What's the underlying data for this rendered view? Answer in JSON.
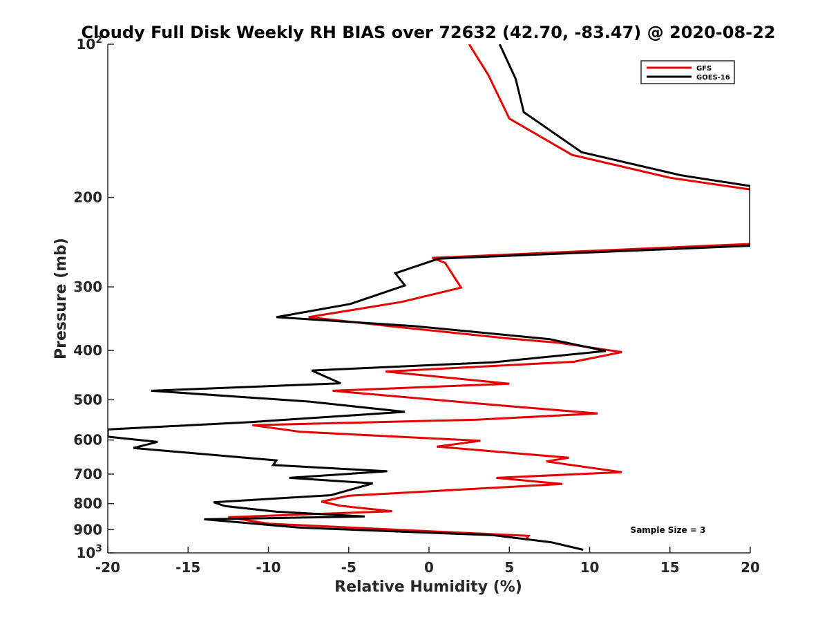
{
  "chart_data": {
    "type": "line",
    "title": "Cloudy Full Disk Weekly RH BIAS over 72632 (42.70, -83.47) @ 2020-08-22",
    "xlabel": "Relative Humidity (%)",
    "ylabel": "Pressure (mb)",
    "xlim": [
      -20,
      20
    ],
    "ylim": [
      100,
      1000
    ],
    "y_scale": "log",
    "y_reversed": true,
    "x_ticks": [
      "-20",
      "-15",
      "-10",
      "-5",
      "0",
      "5",
      "10",
      "15",
      "20"
    ],
    "y_ticks": [
      {
        "value": 100,
        "base": "10",
        "exp": "2"
      },
      {
        "value": 200,
        "label": "200"
      },
      {
        "value": 300,
        "label": "300"
      },
      {
        "value": 400,
        "label": "400"
      },
      {
        "value": 500,
        "label": "500"
      },
      {
        "value": 600,
        "label": "600"
      },
      {
        "value": 700,
        "label": "700"
      },
      {
        "value": 800,
        "label": "800"
      },
      {
        "value": 900,
        "label": "900"
      },
      {
        "value": 1000,
        "base": "10",
        "exp": "3"
      }
    ],
    "legend_position": "top-right",
    "annotation": "Sample Size = 3",
    "series": [
      {
        "name": "GFS",
        "color": "#e60000",
        "points": [
          [
            2.5,
            100
          ],
          [
            3.7,
            115
          ],
          [
            5.0,
            140
          ],
          [
            8.9,
            165
          ],
          [
            15.0,
            183
          ],
          [
            20.0,
            193
          ],
          [
            20.0,
            247
          ],
          [
            0.2,
            263
          ],
          [
            1.0,
            269
          ],
          [
            2.0,
            301
          ],
          [
            -1.7,
            321
          ],
          [
            -7.5,
            344
          ],
          [
            -2.5,
            358
          ],
          [
            5.0,
            379
          ],
          [
            8.0,
            386
          ],
          [
            12.0,
            403
          ],
          [
            9.0,
            421
          ],
          [
            -2.7,
            440
          ],
          [
            5.0,
            465
          ],
          [
            -6.0,
            480
          ],
          [
            3.5,
            510
          ],
          [
            10.5,
            532
          ],
          [
            3.0,
            547
          ],
          [
            -11.0,
            561
          ],
          [
            -8.0,
            578
          ],
          [
            3.2,
            602
          ],
          [
            0.5,
            618
          ],
          [
            8.7,
            650
          ],
          [
            7.3,
            661
          ],
          [
            12.0,
            694
          ],
          [
            4.2,
            712
          ],
          [
            8.3,
            732
          ],
          [
            -5.0,
            772
          ],
          [
            -6.7,
            793
          ],
          [
            -5.5,
            808
          ],
          [
            -2.3,
            828
          ],
          [
            -12.5,
            851
          ],
          [
            -10.0,
            876
          ],
          [
            6.2,
            926
          ],
          [
            6.0,
            945
          ]
        ]
      },
      {
        "name": "GOES-16",
        "color": "#000000",
        "points": [
          [
            4.4,
            100
          ],
          [
            5.4,
            117
          ],
          [
            5.9,
            136
          ],
          [
            9.5,
            163
          ],
          [
            15.7,
            181
          ],
          [
            20.0,
            190
          ],
          [
            20.0,
            249
          ],
          [
            0.6,
            264
          ],
          [
            -2.1,
            282
          ],
          [
            -1.5,
            298
          ],
          [
            -4.9,
            324
          ],
          [
            -9.5,
            344
          ],
          [
            -1.0,
            358
          ],
          [
            7.5,
            380
          ],
          [
            11.0,
            401
          ],
          [
            4.0,
            422
          ],
          [
            -7.3,
            438
          ],
          [
            -5.5,
            464
          ],
          [
            -17.3,
            480
          ],
          [
            -7.5,
            504
          ],
          [
            -1.5,
            528
          ],
          [
            -11.0,
            553
          ],
          [
            -20.0,
            572
          ],
          [
            -20.0,
            591
          ],
          [
            -16.9,
            605
          ],
          [
            -18.4,
            622
          ],
          [
            -9.5,
            658
          ],
          [
            -9.7,
            672
          ],
          [
            -2.6,
            691
          ],
          [
            -8.7,
            712
          ],
          [
            -3.5,
            730
          ],
          [
            -6.1,
            770
          ],
          [
            -13.4,
            795
          ],
          [
            -12.7,
            809
          ],
          [
            -9.5,
            830
          ],
          [
            -4.0,
            848
          ],
          [
            -14.0,
            859
          ],
          [
            -8.0,
            892
          ],
          [
            4.0,
            923
          ],
          [
            7.6,
            953
          ],
          [
            9.6,
            986
          ]
        ]
      }
    ]
  }
}
